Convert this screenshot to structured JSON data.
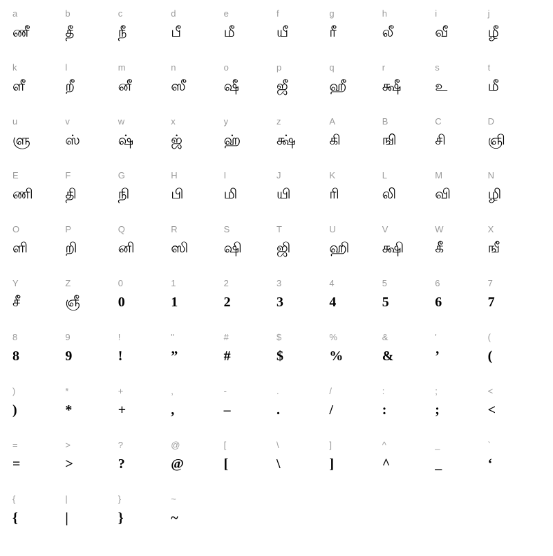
{
  "columns": 10,
  "key_color": "#9a9a9a",
  "glyph_color": "#000000",
  "background": "#ffffff",
  "key_fontsize": 13,
  "glyph_fontsize": 20,
  "cells": [
    {
      "key": "a",
      "glyph": "ணீ",
      "bold": false
    },
    {
      "key": "b",
      "glyph": "தீ",
      "bold": false
    },
    {
      "key": "c",
      "glyph": "நீ",
      "bold": false
    },
    {
      "key": "d",
      "glyph": "பீ",
      "bold": false
    },
    {
      "key": "e",
      "glyph": "மீ",
      "bold": false
    },
    {
      "key": "f",
      "glyph": "யீ",
      "bold": false
    },
    {
      "key": "g",
      "glyph": "ரீ",
      "bold": false
    },
    {
      "key": "h",
      "glyph": "லீ",
      "bold": false
    },
    {
      "key": "i",
      "glyph": "வீ",
      "bold": false
    },
    {
      "key": "j",
      "glyph": "ழீ",
      "bold": false
    },
    {
      "key": "k",
      "glyph": "ளீ",
      "bold": false
    },
    {
      "key": "l",
      "glyph": "றீ",
      "bold": false
    },
    {
      "key": "m",
      "glyph": "னீ",
      "bold": false
    },
    {
      "key": "n",
      "glyph": "ஸீ",
      "bold": false
    },
    {
      "key": "o",
      "glyph": "ஷீ",
      "bold": false
    },
    {
      "key": "p",
      "glyph": "ஜீ",
      "bold": false
    },
    {
      "key": "q",
      "glyph": "ஹீ",
      "bold": false
    },
    {
      "key": "r",
      "glyph": "க்ஷீ",
      "bold": false
    },
    {
      "key": "s",
      "glyph": "உ",
      "bold": false
    },
    {
      "key": "t",
      "glyph": "மீ",
      "bold": false
    },
    {
      "key": "u",
      "glyph": "ளு",
      "bold": false
    },
    {
      "key": "v",
      "glyph": "ஸ்",
      "bold": false
    },
    {
      "key": "w",
      "glyph": "ஷ்",
      "bold": false
    },
    {
      "key": "x",
      "glyph": "ஜ்",
      "bold": false
    },
    {
      "key": "y",
      "glyph": "ஹ்",
      "bold": false
    },
    {
      "key": "z",
      "glyph": "க்ஷ்",
      "bold": false
    },
    {
      "key": "A",
      "glyph": "கி",
      "bold": false
    },
    {
      "key": "B",
      "glyph": "ஙி",
      "bold": false
    },
    {
      "key": "C",
      "glyph": "சி",
      "bold": false
    },
    {
      "key": "D",
      "glyph": "ஞி",
      "bold": false
    },
    {
      "key": "E",
      "glyph": "ணி",
      "bold": false
    },
    {
      "key": "F",
      "glyph": "தி",
      "bold": false
    },
    {
      "key": "G",
      "glyph": "நி",
      "bold": false
    },
    {
      "key": "H",
      "glyph": "பி",
      "bold": false
    },
    {
      "key": "I",
      "glyph": "மி",
      "bold": false
    },
    {
      "key": "J",
      "glyph": "யி",
      "bold": false
    },
    {
      "key": "K",
      "glyph": "ரி",
      "bold": false
    },
    {
      "key": "L",
      "glyph": "லி",
      "bold": false
    },
    {
      "key": "M",
      "glyph": "வி",
      "bold": false
    },
    {
      "key": "N",
      "glyph": "ழி",
      "bold": false
    },
    {
      "key": "O",
      "glyph": "ளி",
      "bold": false
    },
    {
      "key": "P",
      "glyph": "றி",
      "bold": false
    },
    {
      "key": "Q",
      "glyph": "னி",
      "bold": false
    },
    {
      "key": "R",
      "glyph": "ஸி",
      "bold": false
    },
    {
      "key": "S",
      "glyph": "ஷி",
      "bold": false
    },
    {
      "key": "T",
      "glyph": "ஜி",
      "bold": false
    },
    {
      "key": "U",
      "glyph": "ஹி",
      "bold": false
    },
    {
      "key": "V",
      "glyph": "க்ஷி",
      "bold": false
    },
    {
      "key": "W",
      "glyph": "கீ",
      "bold": false
    },
    {
      "key": "X",
      "glyph": "ஙீ",
      "bold": false
    },
    {
      "key": "Y",
      "glyph": "சீ",
      "bold": false
    },
    {
      "key": "Z",
      "glyph": "ஞீ",
      "bold": false
    },
    {
      "key": "0",
      "glyph": "0",
      "bold": true
    },
    {
      "key": "1",
      "glyph": "1",
      "bold": true
    },
    {
      "key": "2",
      "glyph": "2",
      "bold": true
    },
    {
      "key": "3",
      "glyph": "3",
      "bold": true
    },
    {
      "key": "4",
      "glyph": "4",
      "bold": true
    },
    {
      "key": "5",
      "glyph": "5",
      "bold": true
    },
    {
      "key": "6",
      "glyph": "6",
      "bold": true
    },
    {
      "key": "7",
      "glyph": "7",
      "bold": true
    },
    {
      "key": "8",
      "glyph": "8",
      "bold": true
    },
    {
      "key": "9",
      "glyph": "9",
      "bold": true
    },
    {
      "key": "!",
      "glyph": "!",
      "bold": true
    },
    {
      "key": "\"",
      "glyph": "”",
      "bold": true
    },
    {
      "key": "#",
      "glyph": "#",
      "bold": true
    },
    {
      "key": "$",
      "glyph": "$",
      "bold": true
    },
    {
      "key": "%",
      "glyph": "%",
      "bold": true
    },
    {
      "key": "&",
      "glyph": "&",
      "bold": true
    },
    {
      "key": "'",
      "glyph": "’",
      "bold": true
    },
    {
      "key": "(",
      "glyph": "(",
      "bold": true
    },
    {
      "key": ")",
      "glyph": ")",
      "bold": true
    },
    {
      "key": "*",
      "glyph": "*",
      "bold": true
    },
    {
      "key": "+",
      "glyph": "+",
      "bold": true
    },
    {
      "key": ",",
      "glyph": ",",
      "bold": true
    },
    {
      "key": "-",
      "glyph": "–",
      "bold": true
    },
    {
      "key": ".",
      "glyph": ".",
      "bold": true
    },
    {
      "key": "/",
      "glyph": "/",
      "bold": true
    },
    {
      "key": ":",
      "glyph": ":",
      "bold": true
    },
    {
      "key": ";",
      "glyph": ";",
      "bold": true
    },
    {
      "key": "<",
      "glyph": "<",
      "bold": true
    },
    {
      "key": "=",
      "glyph": "=",
      "bold": true
    },
    {
      "key": ">",
      "glyph": ">",
      "bold": true
    },
    {
      "key": "?",
      "glyph": "?",
      "bold": true
    },
    {
      "key": "@",
      "glyph": "@",
      "bold": true
    },
    {
      "key": "[",
      "glyph": "[",
      "bold": true
    },
    {
      "key": "\\",
      "glyph": "\\",
      "bold": true
    },
    {
      "key": "]",
      "glyph": "]",
      "bold": true
    },
    {
      "key": "^",
      "glyph": "^",
      "bold": true
    },
    {
      "key": "_",
      "glyph": "_",
      "bold": true
    },
    {
      "key": "`",
      "glyph": "‘",
      "bold": true
    },
    {
      "key": "{",
      "glyph": "{",
      "bold": true
    },
    {
      "key": "|",
      "glyph": "|",
      "bold": true
    },
    {
      "key": "}",
      "glyph": "}",
      "bold": true
    },
    {
      "key": "~",
      "glyph": "~",
      "bold": true
    }
  ]
}
